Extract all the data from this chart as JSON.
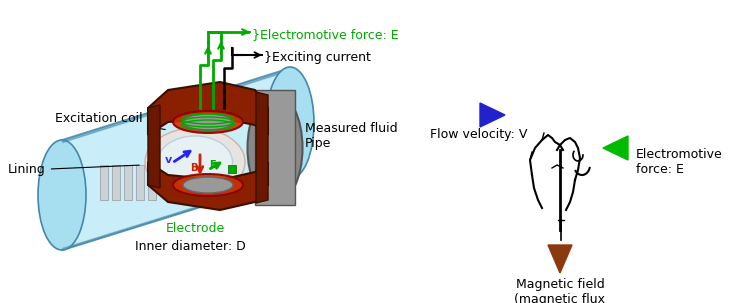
{
  "bg_color": "#ffffff",
  "colors": {
    "green": "#00aa00",
    "blue": "#0000cc",
    "brown_arrow": "#8B3A10",
    "light_blue_pipe": "#a8dff0",
    "light_blue_pipe2": "#c0eaf8",
    "pipe_edge": "#4488aa",
    "dark_red": "#8B2000",
    "dark_red2": "#a03010",
    "gray_coil": "#888888",
    "gray_coil2": "#aaaaaa",
    "pink_lining": "#f0c8c0",
    "green_arrow": "#00bb00",
    "blue_arrow": "#1515cc"
  },
  "font_size": 9,
  "left_labels": {
    "electromotive_force": "}Electromotive force: E",
    "exciting_current": "}Exciting current",
    "excitation_coil": "Excitation coil",
    "lining": "Lining",
    "measured_fluid_pipe": "Measured fluid\nPipe",
    "electrode": "Electrode",
    "inner_diameter": "Inner diameter: D"
  },
  "right_labels": {
    "flow_velocity": "Flow velocity: V",
    "magnetic_field": "Magnetic field\n(magnetic flux\ndencity): B",
    "electromotive_force": "Electromotive\nforce: E"
  }
}
